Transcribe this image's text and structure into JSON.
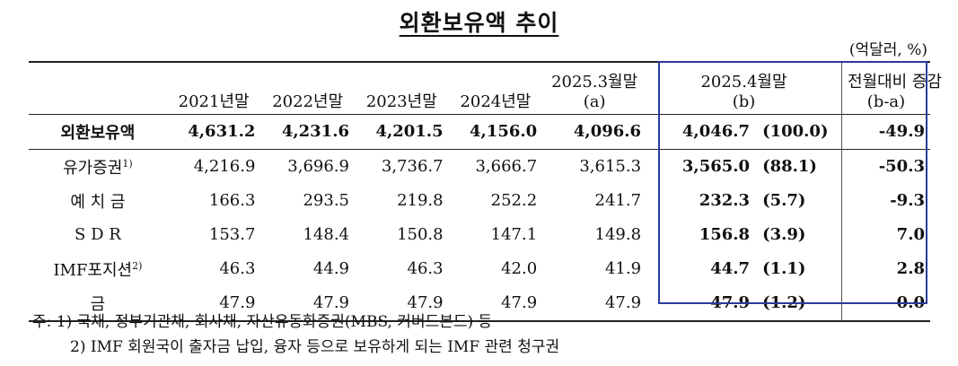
{
  "title": "외환보유액 추이",
  "unit": "(억달러, %)",
  "headers": {
    "c1": "2021년말",
    "c2": "2022년말",
    "c3": "2023년말",
    "c4": "2024년말",
    "c5_line1": "2025.3월말",
    "c5_line2": "(a)",
    "c6_line1": "2025.4월말",
    "c6_line2": "(b)",
    "c7_line1": "전월대비 증감",
    "c7_line2": "(b-a)"
  },
  "rows": [
    {
      "name": "외환보유액",
      "sup": "",
      "v": [
        "4,631.2",
        "4,231.6",
        "4,201.5",
        "4,156.0",
        "4,096.6"
      ],
      "cur": "4,046.7",
      "share": "(100.0)",
      "chg": "-49.9"
    },
    {
      "name": "유가증권",
      "sup": "1)",
      "v": [
        "4,216.9",
        "3,696.9",
        "3,736.7",
        "3,666.7",
        "3,615.3"
      ],
      "cur": "3,565.0",
      "share": "(88.1)",
      "chg": "-50.3"
    },
    {
      "name": "예 치 금",
      "sup": "",
      "v": [
        "166.3",
        "293.5",
        "219.8",
        "252.2",
        "241.7"
      ],
      "cur": "232.3",
      "share": "(5.7)",
      "chg": "-9.3"
    },
    {
      "name": "S D R",
      "sup": "",
      "v": [
        "153.7",
        "148.4",
        "150.8",
        "147.1",
        "149.8"
      ],
      "cur": "156.8",
      "share": "(3.9)",
      "chg": "7.0"
    },
    {
      "name": "IMF포지션",
      "sup": "2)",
      "v": [
        "46.3",
        "44.9",
        "46.3",
        "42.0",
        "41.9"
      ],
      "cur": "44.7",
      "share": "(1.1)",
      "chg": "2.8"
    },
    {
      "name": "금",
      "sup": "",
      "v": [
        "47.9",
        "47.9",
        "47.9",
        "47.9",
        "47.9"
      ],
      "cur": "47.9",
      "share": "(1.2)",
      "chg": "0.0"
    }
  ],
  "footnotes": {
    "f1": "주: 1) 국채, 정부기관채, 회사채, 자산유동화증권(MBS, 커버드본드) 등",
    "f2": "2) IMF 회원국이 출자금 납입, 융자 등으로 보유하게 되는 IMF 관련 청구권"
  }
}
